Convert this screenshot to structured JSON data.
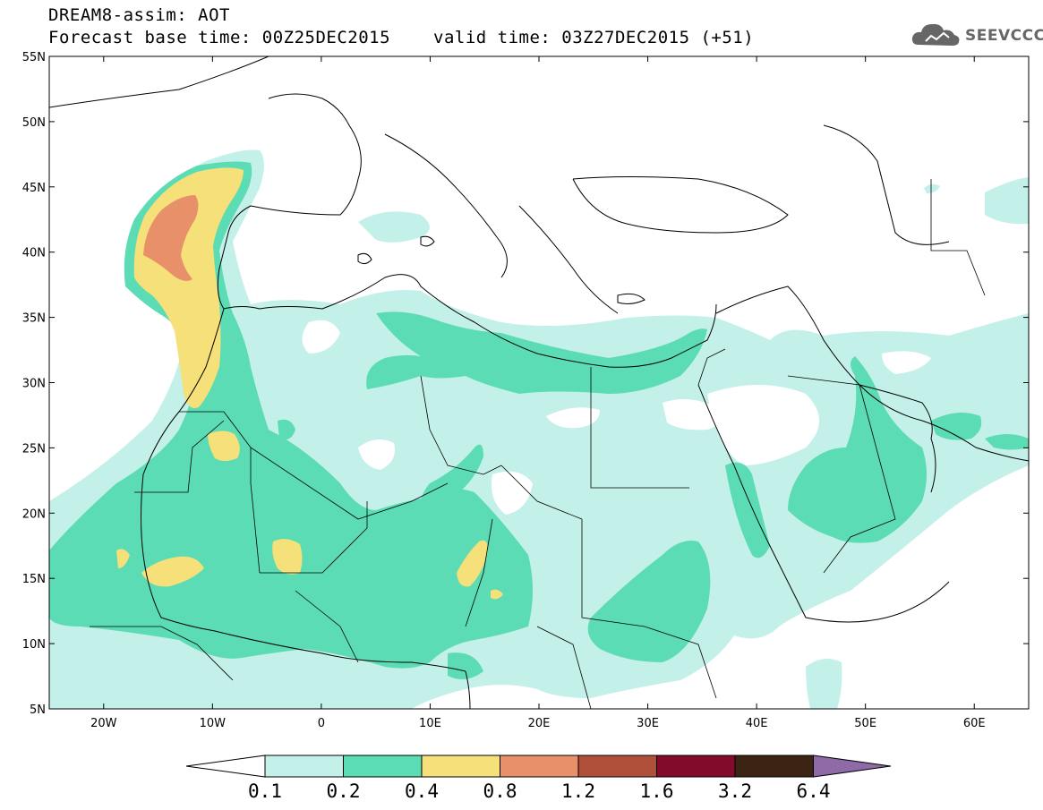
{
  "header": {
    "title_line1": "DREAM8-assim: AOT",
    "title_line2": "Forecast base time: 00Z25DEC2015",
    "valid_time": "valid time: 03Z27DEC2015 (+51)"
  },
  "logo": {
    "text": "SEEVCCC",
    "icon": "cloud-icon"
  },
  "map": {
    "lon_range": [
      -25,
      65
    ],
    "lat_range": [
      5,
      55
    ],
    "lat_ticks": [
      {
        "value": 55,
        "label": "55N"
      },
      {
        "value": 50,
        "label": "50N"
      },
      {
        "value": 45,
        "label": "45N"
      },
      {
        "value": 40,
        "label": "40N"
      },
      {
        "value": 35,
        "label": "35N"
      },
      {
        "value": 30,
        "label": "30N"
      },
      {
        "value": 25,
        "label": "25N"
      },
      {
        "value": 20,
        "label": "20N"
      },
      {
        "value": 15,
        "label": "15N"
      },
      {
        "value": 10,
        "label": "10N"
      },
      {
        "value": 5,
        "label": "5N"
      }
    ],
    "lon_ticks": [
      {
        "value": -20,
        "label": "20W"
      },
      {
        "value": -10,
        "label": "10W"
      },
      {
        "value": 0,
        "label": "0"
      },
      {
        "value": 10,
        "label": "10E"
      },
      {
        "value": 20,
        "label": "20E"
      },
      {
        "value": 30,
        "label": "30E"
      },
      {
        "value": 40,
        "label": "40E"
      },
      {
        "value": 50,
        "label": "50E"
      },
      {
        "value": 60,
        "label": "60E"
      }
    ]
  },
  "colorbar": {
    "under_color": "#ffffff",
    "over_color": "#8e6aa6",
    "bins": [
      {
        "color": "#c4f0ea"
      },
      {
        "color": "#5cdcb4"
      },
      {
        "color": "#f5e07a"
      },
      {
        "color": "#e8906a"
      },
      {
        "color": "#b0503a"
      },
      {
        "color": "#820a2a"
      },
      {
        "color": "#3c2414"
      }
    ],
    "labels": [
      "0.1",
      "0.2",
      "0.4",
      "0.8",
      "1.2",
      "1.6",
      "3.2",
      "6.4"
    ]
  }
}
